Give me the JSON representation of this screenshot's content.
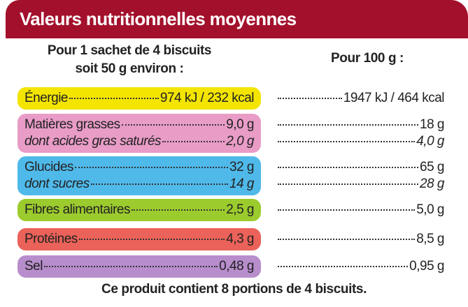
{
  "header": {
    "title": "Valeurs nutritionnelles moyennes"
  },
  "columns": {
    "portion": [
      "Pour 1 sachet de 4 biscuits",
      "soit 50 g environ :"
    ],
    "per100": "Pour 100 g :"
  },
  "groups": [
    {
      "color": "#f4e500",
      "lines": [
        {
          "label": "Énergie",
          "portion": "974 kJ / 232 kcal",
          "per100": "1947 kJ / 464 kcal",
          "italic": false
        }
      ]
    },
    {
      "color": "#e89cc6",
      "lines": [
        {
          "label": "Matières grasses",
          "portion": "9,0 g",
          "per100": "18 g",
          "italic": false
        },
        {
          "label": "dont acides gras saturés",
          "portion": "2,0 g",
          "per100": "4,0 g",
          "italic": true
        }
      ]
    },
    {
      "color": "#4fb9ea",
      "lines": [
        {
          "label": "Glucides",
          "portion": "32 g",
          "per100": "65 g",
          "italic": false
        },
        {
          "label": "dont sucres",
          "portion": "14 g",
          "per100": "28 g",
          "italic": true
        }
      ]
    },
    {
      "color": "#9ccb2e",
      "lines": [
        {
          "label": "Fibres alimentaires",
          "portion": "2,5 g",
          "per100": "5,0 g",
          "italic": false
        }
      ]
    },
    {
      "color": "#ea6259",
      "lines": [
        {
          "label": "Protéines",
          "portion": "4,3 g",
          "per100": "8,5 g",
          "italic": false
        }
      ]
    },
    {
      "color": "#b78dcc",
      "lines": [
        {
          "label": "Sel",
          "portion": "0,48 g",
          "per100": "0,95 g",
          "italic": false
        }
      ]
    }
  ],
  "footer": "Ce produit contient 8 portions de 4 biscuits."
}
